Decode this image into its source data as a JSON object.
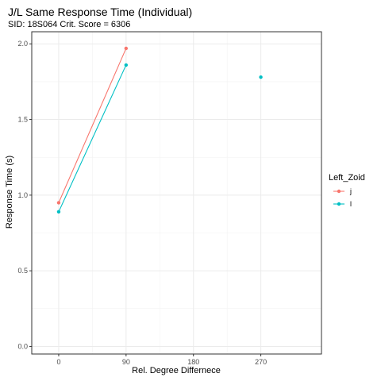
{
  "chart_data": {
    "type": "line",
    "title": "J/L Same Response Time (Individual)",
    "subtitle": "SID:  18S064 Crit. Score =  6306",
    "xlabel": "Rel. Degree Differnece",
    "ylabel": "Response Time (s)",
    "xlim": [
      -36,
      351
    ],
    "ylim": [
      -0.05,
      2.08
    ],
    "x_ticks": [
      0,
      90,
      180,
      270
    ],
    "y_ticks": [
      0.0,
      0.5,
      1.0,
      1.5,
      2.0
    ],
    "x_tick_labels": [
      "0",
      "90",
      "180",
      "270"
    ],
    "y_tick_labels": [
      "0.0",
      "0.5",
      "1.0",
      "1.5",
      "2.0"
    ],
    "grid": true,
    "legend_title": "Left_Zoid",
    "legend_position": "right",
    "series": [
      {
        "name": "j",
        "color": "#F8766D",
        "points": [
          {
            "x": 0,
            "y": 0.95
          },
          {
            "x": 90,
            "y": 1.97
          }
        ],
        "connect": [
          [
            0,
            1
          ]
        ]
      },
      {
        "name": "l",
        "color": "#00BFC4",
        "points": [
          {
            "x": 0,
            "y": 0.89
          },
          {
            "x": 90,
            "y": 1.86
          },
          {
            "x": 270,
            "y": 1.78
          }
        ],
        "connect": [
          [
            0,
            1
          ]
        ]
      }
    ]
  }
}
